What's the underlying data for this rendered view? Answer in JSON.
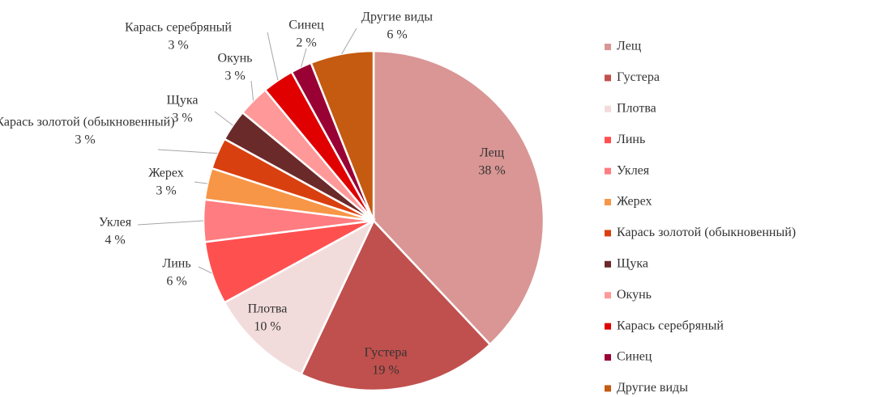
{
  "chart_data": {
    "type": "pie",
    "categories": [
      "Лещ",
      "Густера",
      "Плотва",
      "Линь",
      "Уклея",
      "Жерех",
      "Карась золотой (обыкновенный)",
      "Щука",
      "Окунь",
      "Карась серебряный",
      "Синец",
      "Другие виды"
    ],
    "values": [
      38,
      19,
      10,
      6,
      4,
      3,
      3,
      3,
      3,
      3,
      2,
      6
    ],
    "value_labels": [
      "38 %",
      "19 %",
      "10 %",
      "6 %",
      "4 %",
      "3 %",
      "3 %",
      "3 %",
      "3 %",
      "3 %",
      "2 %",
      "6 %"
    ],
    "colors": [
      "#d99694",
      "#c0504d",
      "#f2dcdb",
      "#ff5050",
      "#ff7c80",
      "#f79646",
      "#d9400f",
      "#6b2a2a",
      "#ff9999",
      "#e00000",
      "#990033",
      "#c55a11"
    ],
    "legend": "right"
  }
}
